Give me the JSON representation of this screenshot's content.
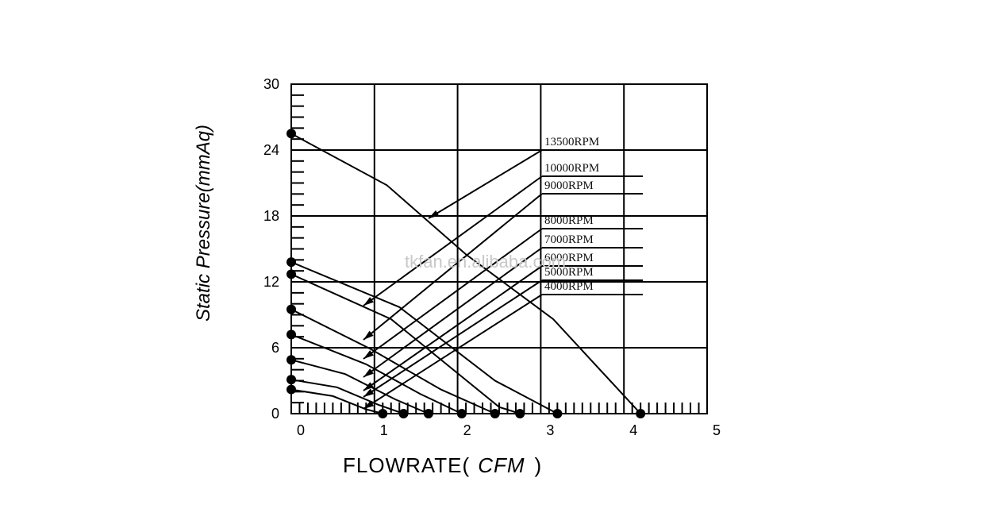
{
  "chart_data": {
    "type": "line",
    "xlabel_prefix": "FLOWRATE(",
    "xlabel_unit": "CFM",
    "xlabel_suffix": ")",
    "ylabel": "Static Pressure(mmAq)",
    "xlim": [
      0,
      5
    ],
    "ylim": [
      0,
      30
    ],
    "x_ticks": [
      "0",
      "1",
      "2",
      "3",
      "4",
      "5"
    ],
    "y_ticks": [
      "0",
      "6",
      "12",
      "18",
      "24",
      "30"
    ],
    "watermark": "tkfan.en.alibaba.com",
    "grid": true,
    "series": [
      {
        "name": "13500RPM",
        "points": [
          [
            0,
            25.5
          ],
          [
            1.15,
            20.8
          ],
          [
            2.1,
            14.5
          ],
          [
            3.15,
            8.6
          ],
          [
            4.2,
            0
          ]
        ]
      },
      {
        "name": "10000RPM",
        "points": [
          [
            0,
            13.8
          ],
          [
            1.3,
            9.7
          ],
          [
            2.45,
            3.0
          ],
          [
            3.2,
            0
          ]
        ]
      },
      {
        "name": "9000RPM",
        "points": [
          [
            0,
            12.7
          ],
          [
            1.2,
            8.6
          ],
          [
            2.5,
            0.6
          ],
          [
            2.75,
            0
          ]
        ]
      },
      {
        "name": "8000RPM",
        "points": [
          [
            0,
            9.5
          ],
          [
            0.95,
            5.9
          ],
          [
            1.8,
            2.2
          ],
          [
            2.45,
            0
          ]
        ]
      },
      {
        "name": "7000RPM",
        "points": [
          [
            0,
            7.2
          ],
          [
            0.9,
            4.5
          ],
          [
            1.55,
            1.8
          ],
          [
            2.05,
            0
          ]
        ]
      },
      {
        "name": "6000RPM",
        "points": [
          [
            0,
            4.9
          ],
          [
            0.65,
            3.6
          ],
          [
            1.25,
            1.3
          ],
          [
            1.65,
            0
          ]
        ]
      },
      {
        "name": "5000RPM",
        "points": [
          [
            0,
            3.1
          ],
          [
            0.55,
            2.4
          ],
          [
            1.05,
            0.8
          ],
          [
            1.35,
            0
          ]
        ]
      },
      {
        "name": "4000RPM",
        "points": [
          [
            0,
            2.2
          ],
          [
            0.5,
            1.6
          ],
          [
            0.9,
            0.4
          ],
          [
            1.1,
            0
          ]
        ]
      }
    ]
  }
}
